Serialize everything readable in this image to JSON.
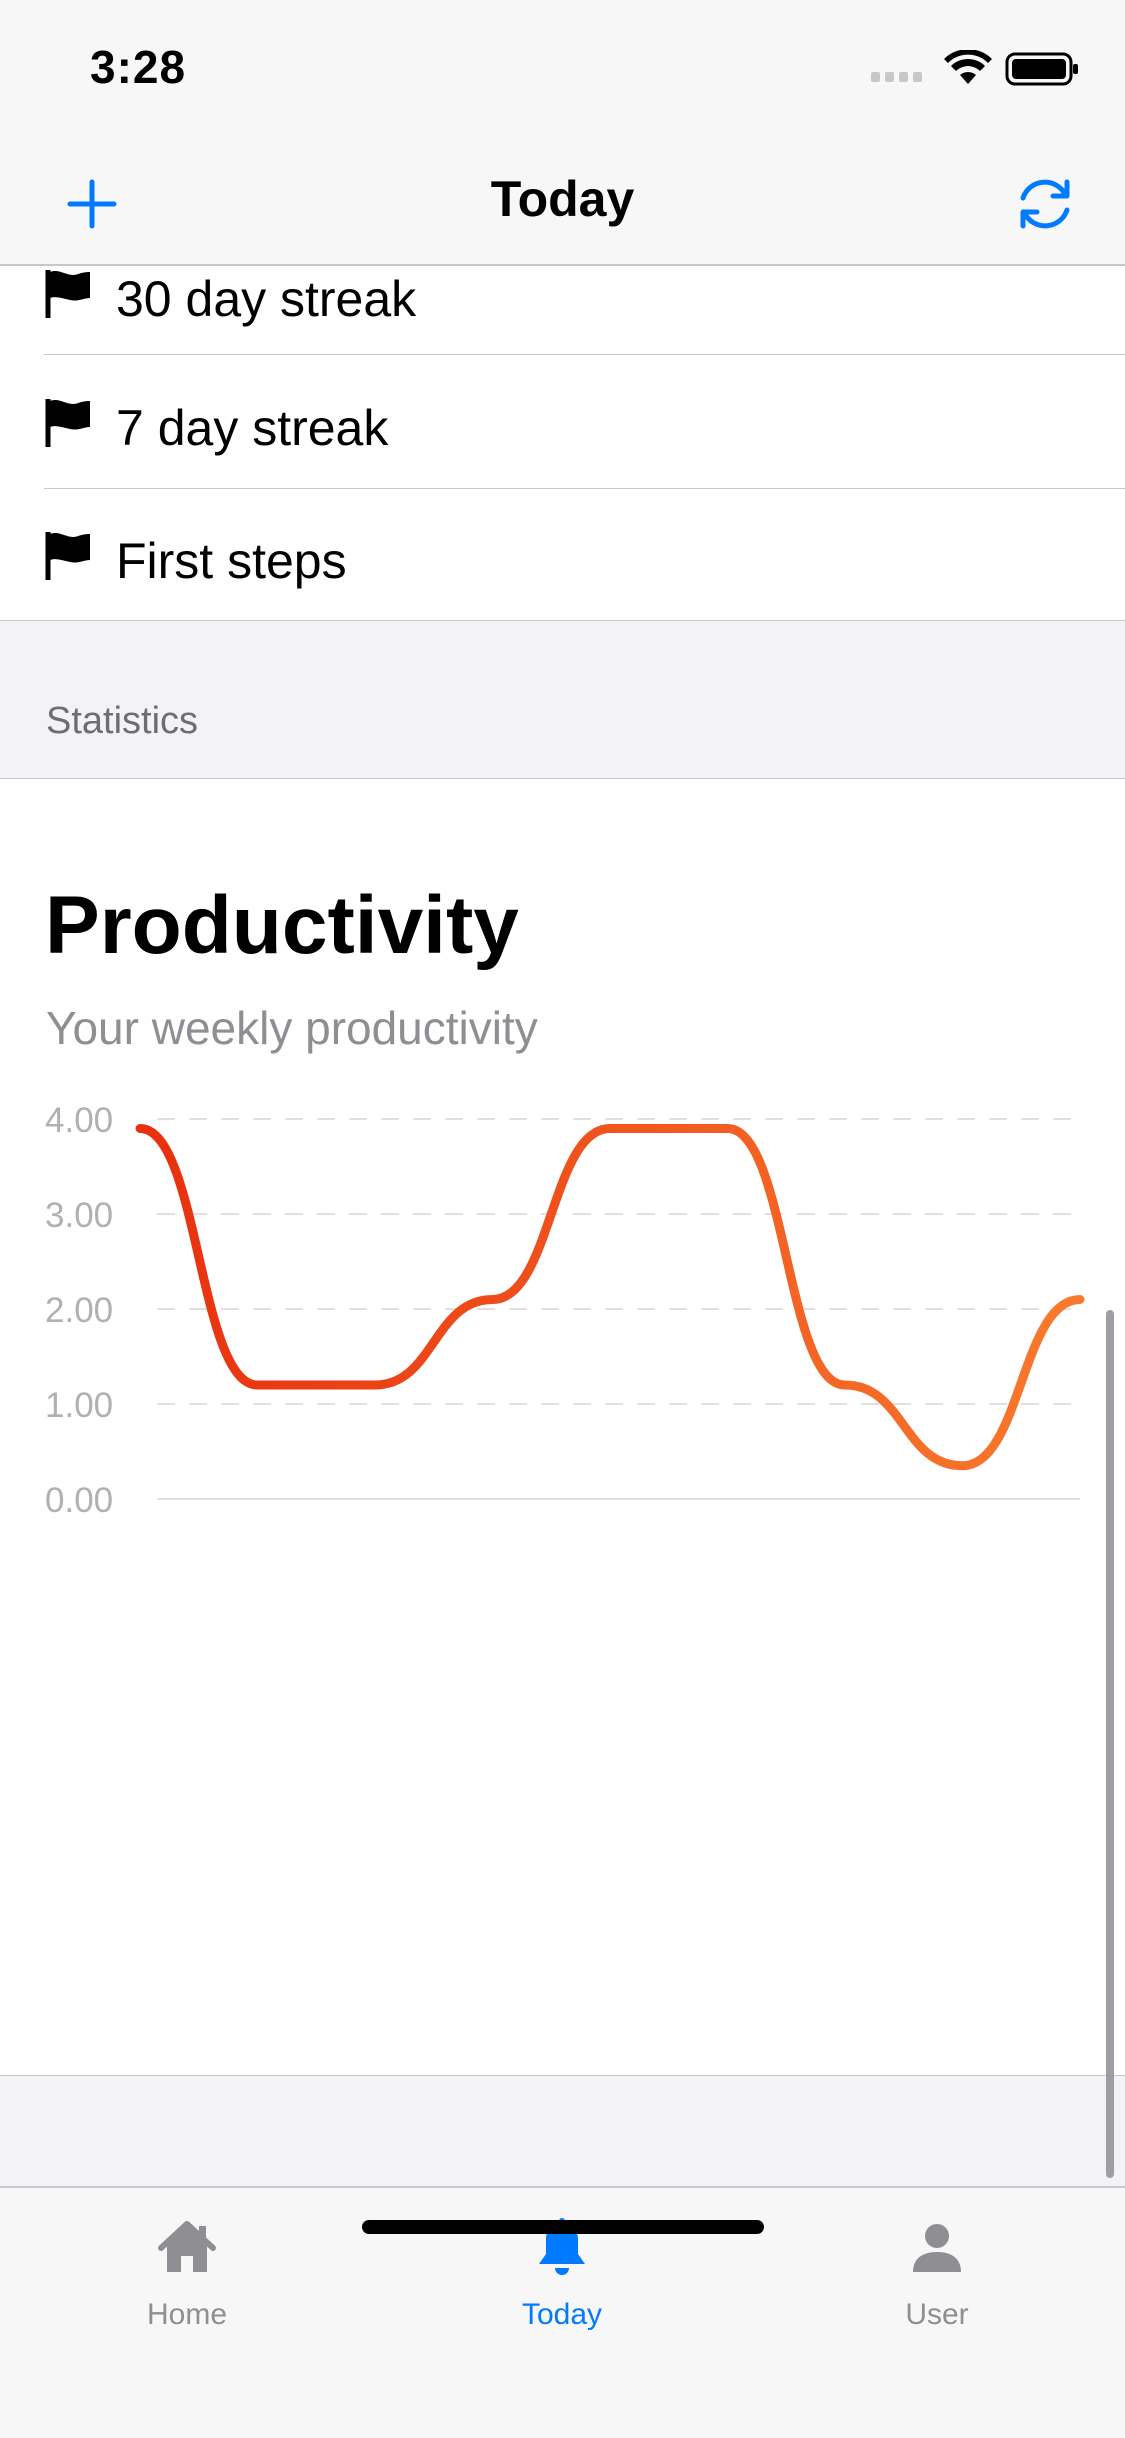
{
  "status_bar": {
    "time": "3:28"
  },
  "nav": {
    "title": "Today",
    "add_icon": "plus-icon",
    "refresh_icon": "refresh-icon"
  },
  "achievements": [
    {
      "label": "30 day streak",
      "icon": "flag-icon"
    },
    {
      "label": "7 day streak",
      "icon": "flag-icon"
    },
    {
      "label": "First steps",
      "icon": "flag-icon"
    }
  ],
  "section": {
    "statistics_header": "Statistics"
  },
  "card": {
    "title": "Productivity",
    "subtitle": "Your weekly productivity"
  },
  "chart_data": {
    "type": "line",
    "title": "Productivity",
    "subtitle": "Your weekly productivity",
    "ylim": [
      0,
      4
    ],
    "y_ticks": [
      "0.00",
      "1.00",
      "2.00",
      "3.00",
      "4.00"
    ],
    "x": [
      0,
      1,
      2,
      3,
      4,
      5,
      6,
      7,
      8
    ],
    "values": [
      3.9,
      1.2,
      1.2,
      2.1,
      3.9,
      3.9,
      1.2,
      0.35,
      2.1
    ],
    "grid": true,
    "colors": {
      "start": "#e8300e",
      "end": "#f97a2e"
    }
  },
  "tabs": [
    {
      "label": "Home",
      "icon": "house-icon",
      "active": false
    },
    {
      "label": "Today",
      "icon": "bell-icon",
      "active": true
    },
    {
      "label": "User",
      "icon": "person-icon",
      "active": false
    }
  ],
  "colors": {
    "accent": "#007aff",
    "inactive": "#8e8e93",
    "background": "#f2f2f7"
  }
}
